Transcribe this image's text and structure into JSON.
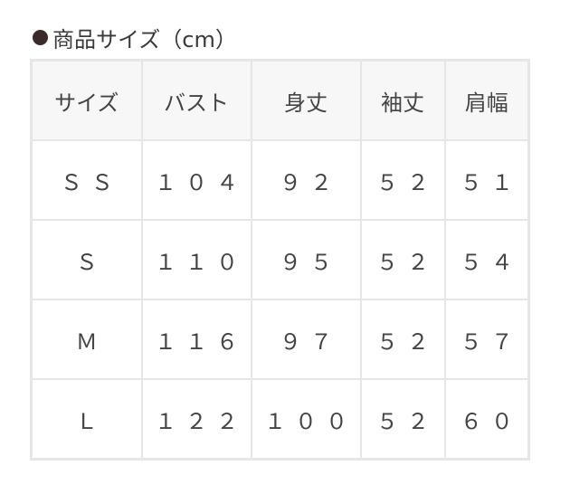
{
  "title": "商品サイズ（cm）",
  "colors": {
    "bullet": "#3b2a2a",
    "header_bg": "#f7f7f7",
    "border": "#e6e6e6"
  },
  "headers": [
    "サイズ",
    "バスト",
    "身丈",
    "袖丈",
    "肩幅"
  ],
  "rows": [
    [
      "ＳＳ",
      "１０４",
      "９２",
      "５２",
      "５１"
    ],
    [
      "Ｓ",
      "１１０",
      "９５",
      "５２",
      "５４"
    ],
    [
      "Ｍ",
      "１１６",
      "９７",
      "５２",
      "５７"
    ],
    [
      "Ｌ",
      "１２２",
      "１００",
      "５２",
      "６０"
    ]
  ]
}
